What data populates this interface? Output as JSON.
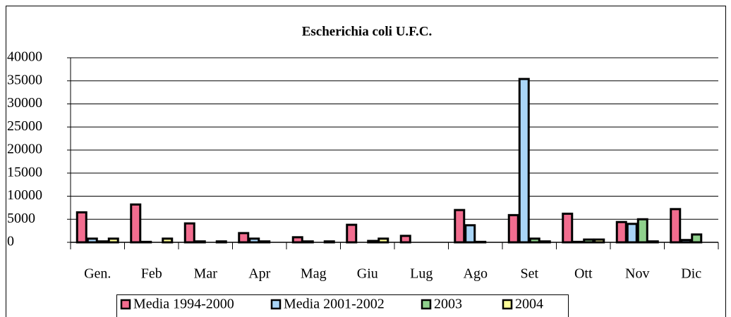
{
  "chart_data": {
    "type": "bar",
    "title": "Escherichia coli U.F.C.",
    "categories": [
      "Gen.",
      "Feb",
      "Mar",
      "Apr",
      "Mag",
      "Giu",
      "Lug",
      "Ago",
      "Set",
      "Ott",
      "Nov",
      "Dic"
    ],
    "series": [
      {
        "name": "Media 1994-2000",
        "color": "#f26d8f",
        "values": [
          6500,
          8200,
          4100,
          2000,
          1100,
          3800,
          1400,
          7000,
          5900,
          6200,
          4400,
          7200
        ]
      },
      {
        "name": "Media 2001-2002",
        "color": "#a9d5f7",
        "values": [
          800,
          100,
          200,
          800,
          200,
          0,
          0,
          3700,
          35400,
          100,
          4000,
          500
        ]
      },
      {
        "name": "2003",
        "color": "#8fd08c",
        "values": [
          200,
          0,
          0,
          200,
          0,
          300,
          0,
          100,
          800,
          600,
          5000,
          1700
        ]
      },
      {
        "name": "2004",
        "color": "#ffff99",
        "values": [
          800,
          800,
          200,
          0,
          200,
          800,
          0,
          0,
          200,
          600,
          200,
          0
        ]
      }
    ],
    "ylim": [
      0,
      40000
    ],
    "yticks": [
      0,
      5000,
      10000,
      15000,
      20000,
      25000,
      30000,
      35000,
      40000
    ],
    "grid": true
  }
}
